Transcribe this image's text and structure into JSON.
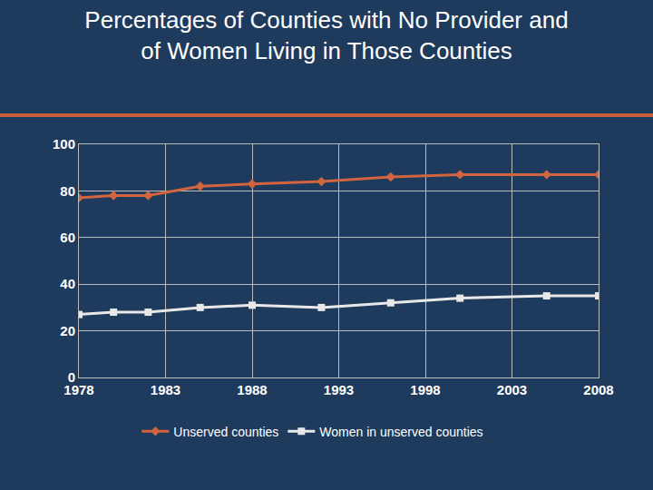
{
  "chart_data": {
    "type": "line",
    "title": "Percentages of Counties with No Provider and of Women Living in Those Counties",
    "x": [
      1978,
      1980,
      1982,
      1985,
      1988,
      1992,
      1996,
      2000,
      2005,
      2008
    ],
    "series": [
      {
        "name": "Unserved counties",
        "color": "#d2653f",
        "marker": "diamond",
        "values": [
          77,
          78,
          78,
          82,
          83,
          84,
          86,
          87,
          87,
          87
        ]
      },
      {
        "name": "Women in unserved counties",
        "color": "#e8e8e8",
        "marker": "square",
        "values": [
          27,
          28,
          28,
          30,
          31,
          30,
          32,
          34,
          35,
          35
        ]
      }
    ],
    "xlim": [
      1978,
      2008
    ],
    "xticks": [
      1978,
      1983,
      1988,
      1993,
      1998,
      2003,
      2008
    ],
    "ylim": [
      0,
      100
    ],
    "yticks": [
      0,
      20,
      40,
      60,
      80,
      100
    ],
    "grid": true,
    "legend": "bottom"
  }
}
